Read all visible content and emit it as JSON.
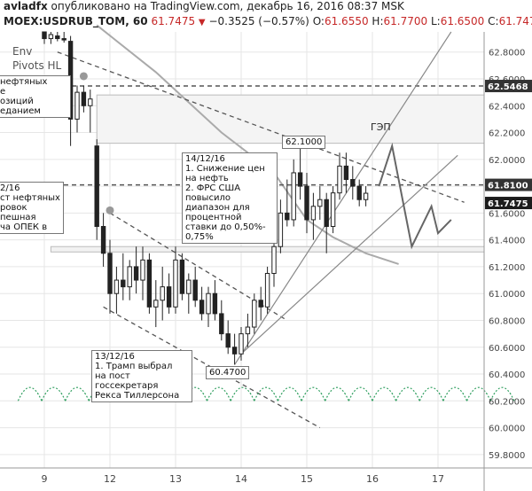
{
  "header": {
    "author": "avladfx",
    "published": "опубликовано на TradingView.com, декабрь 16, 2016 08:37 MSK",
    "symbol": "MOEX:USDRUB_TOM, 60",
    "last": "61.7475",
    "change_icon": "down-triangle-icon",
    "change": "−0.3525 (−0.57%)",
    "ohlc_open_label": "O:",
    "ohlc_open": "61.6550",
    "ohlc_high_label": "H:",
    "ohlc_high": "61.7700",
    "ohlc_low_label": "L:",
    "ohlc_low": "61.6500",
    "ohlc_close_label": "C:",
    "ohlc_close": "61.7475"
  },
  "legend": {
    "env": "Env",
    "pivots": "Pivots HL"
  },
  "annotations": {
    "top_left": "нефтяных\nе\nозиций\nеданием",
    "mid_left": "2/16\nст нефтяных\nровок\nпешная\nча ОПЕК в",
    "dec14": "14/12/16\n1. Снижение цен\nна нефть\n2. ФРС США\nповысило\nдиапазон для\nпроцентной\nставки до 0,50%-\n0,75%",
    "dec13": "13/12/16\n1. Трамп выбрал\nна пост\nгоссекретаря\nРекса Тиллерсона",
    "gap": "ГЭП",
    "high_label": "62.1000",
    "low_label": "60.4700"
  },
  "colors": {
    "up": "#333333",
    "down": "#333333",
    "grid": "#e6e6e6",
    "envelope": "#2e9e5e",
    "ma": "#aaaaaa",
    "dash": "#555555",
    "current_tag": "#1c1c1c",
    "level_tag": "#333333"
  },
  "chart_data": {
    "type": "candlestick",
    "title": "MOEX:USDRUB_TOM, 60",
    "ylim": [
      59.7,
      62.95
    ],
    "y_ticks": [
      "62.8000",
      "62.6000",
      "62.4000",
      "62.2000",
      "62.0000",
      "61.8000",
      "61.6000",
      "61.4000",
      "61.2000",
      "61.0000",
      "60.8000",
      "60.6000",
      "60.4000",
      "60.2000",
      "60.0000",
      "59.8000"
    ],
    "x_ticks": [
      {
        "label": "9",
        "t": 0
      },
      {
        "label": "12",
        "t": 10
      },
      {
        "label": "13",
        "t": 20
      },
      {
        "label": "14",
        "t": 30
      },
      {
        "label": "15",
        "t": 40
      },
      {
        "label": "16",
        "t": 50
      },
      {
        "label": "17",
        "t": 60
      }
    ],
    "price_tags": [
      {
        "value": "62.5468",
        "price": 62.5468,
        "style": "level"
      },
      {
        "value": "61.8100",
        "price": 61.81,
        "style": "level"
      },
      {
        "value": "61.7475",
        "price": 61.7475,
        "style": "current"
      }
    ],
    "horizontal_levels": [
      62.5468,
      61.81
    ],
    "gap_zone": [
      62.12,
      62.48
    ],
    "support_zone": [
      61.31,
      61.35
    ],
    "candles": [
      {
        "o": 62.95,
        "h": 62.95,
        "l": 62.86,
        "c": 62.9
      },
      {
        "o": 62.9,
        "h": 62.95,
        "l": 62.86,
        "c": 62.93
      },
      {
        "o": 62.92,
        "h": 62.95,
        "l": 62.88,
        "c": 62.9
      },
      {
        "o": 62.9,
        "h": 62.95,
        "l": 62.87,
        "c": 62.89
      },
      {
        "o": 62.88,
        "h": 62.92,
        "l": 62.1,
        "c": 62.3
      },
      {
        "o": 62.3,
        "h": 62.55,
        "l": 62.2,
        "c": 62.5
      },
      {
        "o": 62.5,
        "h": 62.55,
        "l": 62.35,
        "c": 62.4
      },
      {
        "o": 62.4,
        "h": 62.52,
        "l": 62.2,
        "c": 62.45
      },
      {
        "o": 62.1,
        "h": 62.15,
        "l": 61.4,
        "c": 61.5
      },
      {
        "o": 61.5,
        "h": 61.6,
        "l": 61.2,
        "c": 61.3
      },
      {
        "o": 61.3,
        "h": 61.4,
        "l": 60.85,
        "c": 61.0
      },
      {
        "o": 61.0,
        "h": 61.2,
        "l": 60.85,
        "c": 61.1
      },
      {
        "o": 61.1,
        "h": 61.3,
        "l": 60.95,
        "c": 61.05
      },
      {
        "o": 61.05,
        "h": 61.25,
        "l": 60.95,
        "c": 61.2
      },
      {
        "o": 61.2,
        "h": 61.35,
        "l": 61.0,
        "c": 61.1
      },
      {
        "o": 61.1,
        "h": 61.35,
        "l": 60.95,
        "c": 61.25
      },
      {
        "o": 61.25,
        "h": 61.3,
        "l": 60.85,
        "c": 60.9
      },
      {
        "o": 60.9,
        "h": 61.1,
        "l": 60.75,
        "c": 60.95
      },
      {
        "o": 60.95,
        "h": 61.2,
        "l": 60.8,
        "c": 61.05
      },
      {
        "o": 61.05,
        "h": 61.15,
        "l": 60.85,
        "c": 60.9
      },
      {
        "o": 60.9,
        "h": 61.35,
        "l": 60.85,
        "c": 61.25
      },
      {
        "o": 61.25,
        "h": 61.3,
        "l": 60.95,
        "c": 61.0
      },
      {
        "o": 61.0,
        "h": 61.15,
        "l": 60.85,
        "c": 61.1
      },
      {
        "o": 61.1,
        "h": 61.2,
        "l": 60.9,
        "c": 60.95
      },
      {
        "o": 60.95,
        "h": 61.05,
        "l": 60.8,
        "c": 60.85
      },
      {
        "o": 60.85,
        "h": 61.05,
        "l": 60.75,
        "c": 61.0
      },
      {
        "o": 61.0,
        "h": 61.1,
        "l": 60.8,
        "c": 60.85
      },
      {
        "o": 60.85,
        "h": 60.95,
        "l": 60.65,
        "c": 60.7
      },
      {
        "o": 60.7,
        "h": 60.8,
        "l": 60.55,
        "c": 60.6
      },
      {
        "o": 60.6,
        "h": 60.7,
        "l": 60.47,
        "c": 60.55
      },
      {
        "o": 60.55,
        "h": 60.75,
        "l": 60.5,
        "c": 60.7
      },
      {
        "o": 60.7,
        "h": 60.85,
        "l": 60.6,
        "c": 60.75
      },
      {
        "o": 60.75,
        "h": 61.0,
        "l": 60.7,
        "c": 60.95
      },
      {
        "o": 60.95,
        "h": 61.05,
        "l": 60.8,
        "c": 60.9
      },
      {
        "o": 60.9,
        "h": 61.2,
        "l": 60.85,
        "c": 61.15
      },
      {
        "o": 61.15,
        "h": 61.4,
        "l": 61.05,
        "c": 61.35
      },
      {
        "o": 61.35,
        "h": 61.7,
        "l": 61.3,
        "c": 61.6
      },
      {
        "o": 61.6,
        "h": 61.85,
        "l": 61.5,
        "c": 61.55
      },
      {
        "o": 61.55,
        "h": 62.0,
        "l": 61.5,
        "c": 61.9
      },
      {
        "o": 61.9,
        "h": 62.1,
        "l": 61.7,
        "c": 61.8
      },
      {
        "o": 61.8,
        "h": 61.9,
        "l": 61.45,
        "c": 61.55
      },
      {
        "o": 61.55,
        "h": 61.75,
        "l": 61.4,
        "c": 61.65
      },
      {
        "o": 61.65,
        "h": 61.8,
        "l": 61.55,
        "c": 61.7
      },
      {
        "o": 61.7,
        "h": 61.75,
        "l": 61.3,
        "c": 61.5
      },
      {
        "o": 61.5,
        "h": 61.8,
        "l": 61.45,
        "c": 61.75
      },
      {
        "o": 61.75,
        "h": 62.05,
        "l": 61.7,
        "c": 61.95
      },
      {
        "o": 61.95,
        "h": 62.05,
        "l": 61.75,
        "c": 61.85
      },
      {
        "o": 61.85,
        "h": 61.95,
        "l": 61.7,
        "c": 61.8
      },
      {
        "o": 61.8,
        "h": 61.85,
        "l": 61.65,
        "c": 61.7
      },
      {
        "o": 61.7,
        "h": 61.8,
        "l": 61.65,
        "c": 61.7475
      }
    ],
    "trendlines": [
      {
        "style": "dash",
        "t1": 2,
        "p1": 62.8,
        "t2": 64,
        "p2": 61.68
      },
      {
        "style": "dash",
        "t1": 10,
        "p1": 61.6,
        "t2": 37,
        "p2": 60.8
      },
      {
        "style": "dash",
        "t1": 9,
        "p1": 60.9,
        "t2": 42,
        "p2": 60.0
      },
      {
        "style": "solid",
        "t1": 29,
        "p1": 60.47,
        "t2": 62,
        "p2": 62.95
      },
      {
        "style": "solid",
        "t1": 30,
        "p1": 60.55,
        "t2": 63,
        "p2": 62.03
      }
    ],
    "forecast_path": [
      {
        "t": 51,
        "p": 61.8
      },
      {
        "t": 53,
        "p": 62.1
      },
      {
        "t": 56,
        "p": 61.35
      },
      {
        "t": 59,
        "p": 61.65
      },
      {
        "t": 60,
        "p": 61.45
      },
      {
        "t": 62,
        "p": 61.55
      }
    ],
    "pivot_dots": [
      {
        "t": 6,
        "p": 62.62
      },
      {
        "t": 10,
        "p": 61.62
      }
    ],
    "moving_average": [
      {
        "t": 8,
        "p": 63.0
      },
      {
        "t": 17,
        "p": 62.65
      },
      {
        "t": 27,
        "p": 62.2
      },
      {
        "t": 35,
        "p": 61.9
      },
      {
        "t": 40,
        "p": 61.55
      },
      {
        "t": 44,
        "p": 61.42
      },
      {
        "t": 49,
        "p": 61.3
      },
      {
        "t": 54,
        "p": 61.22
      }
    ],
    "envelope": {
      "price": 60.2,
      "arch_height": 0.1,
      "period": 3.6,
      "start_t": -4,
      "end_t": 69
    }
  }
}
